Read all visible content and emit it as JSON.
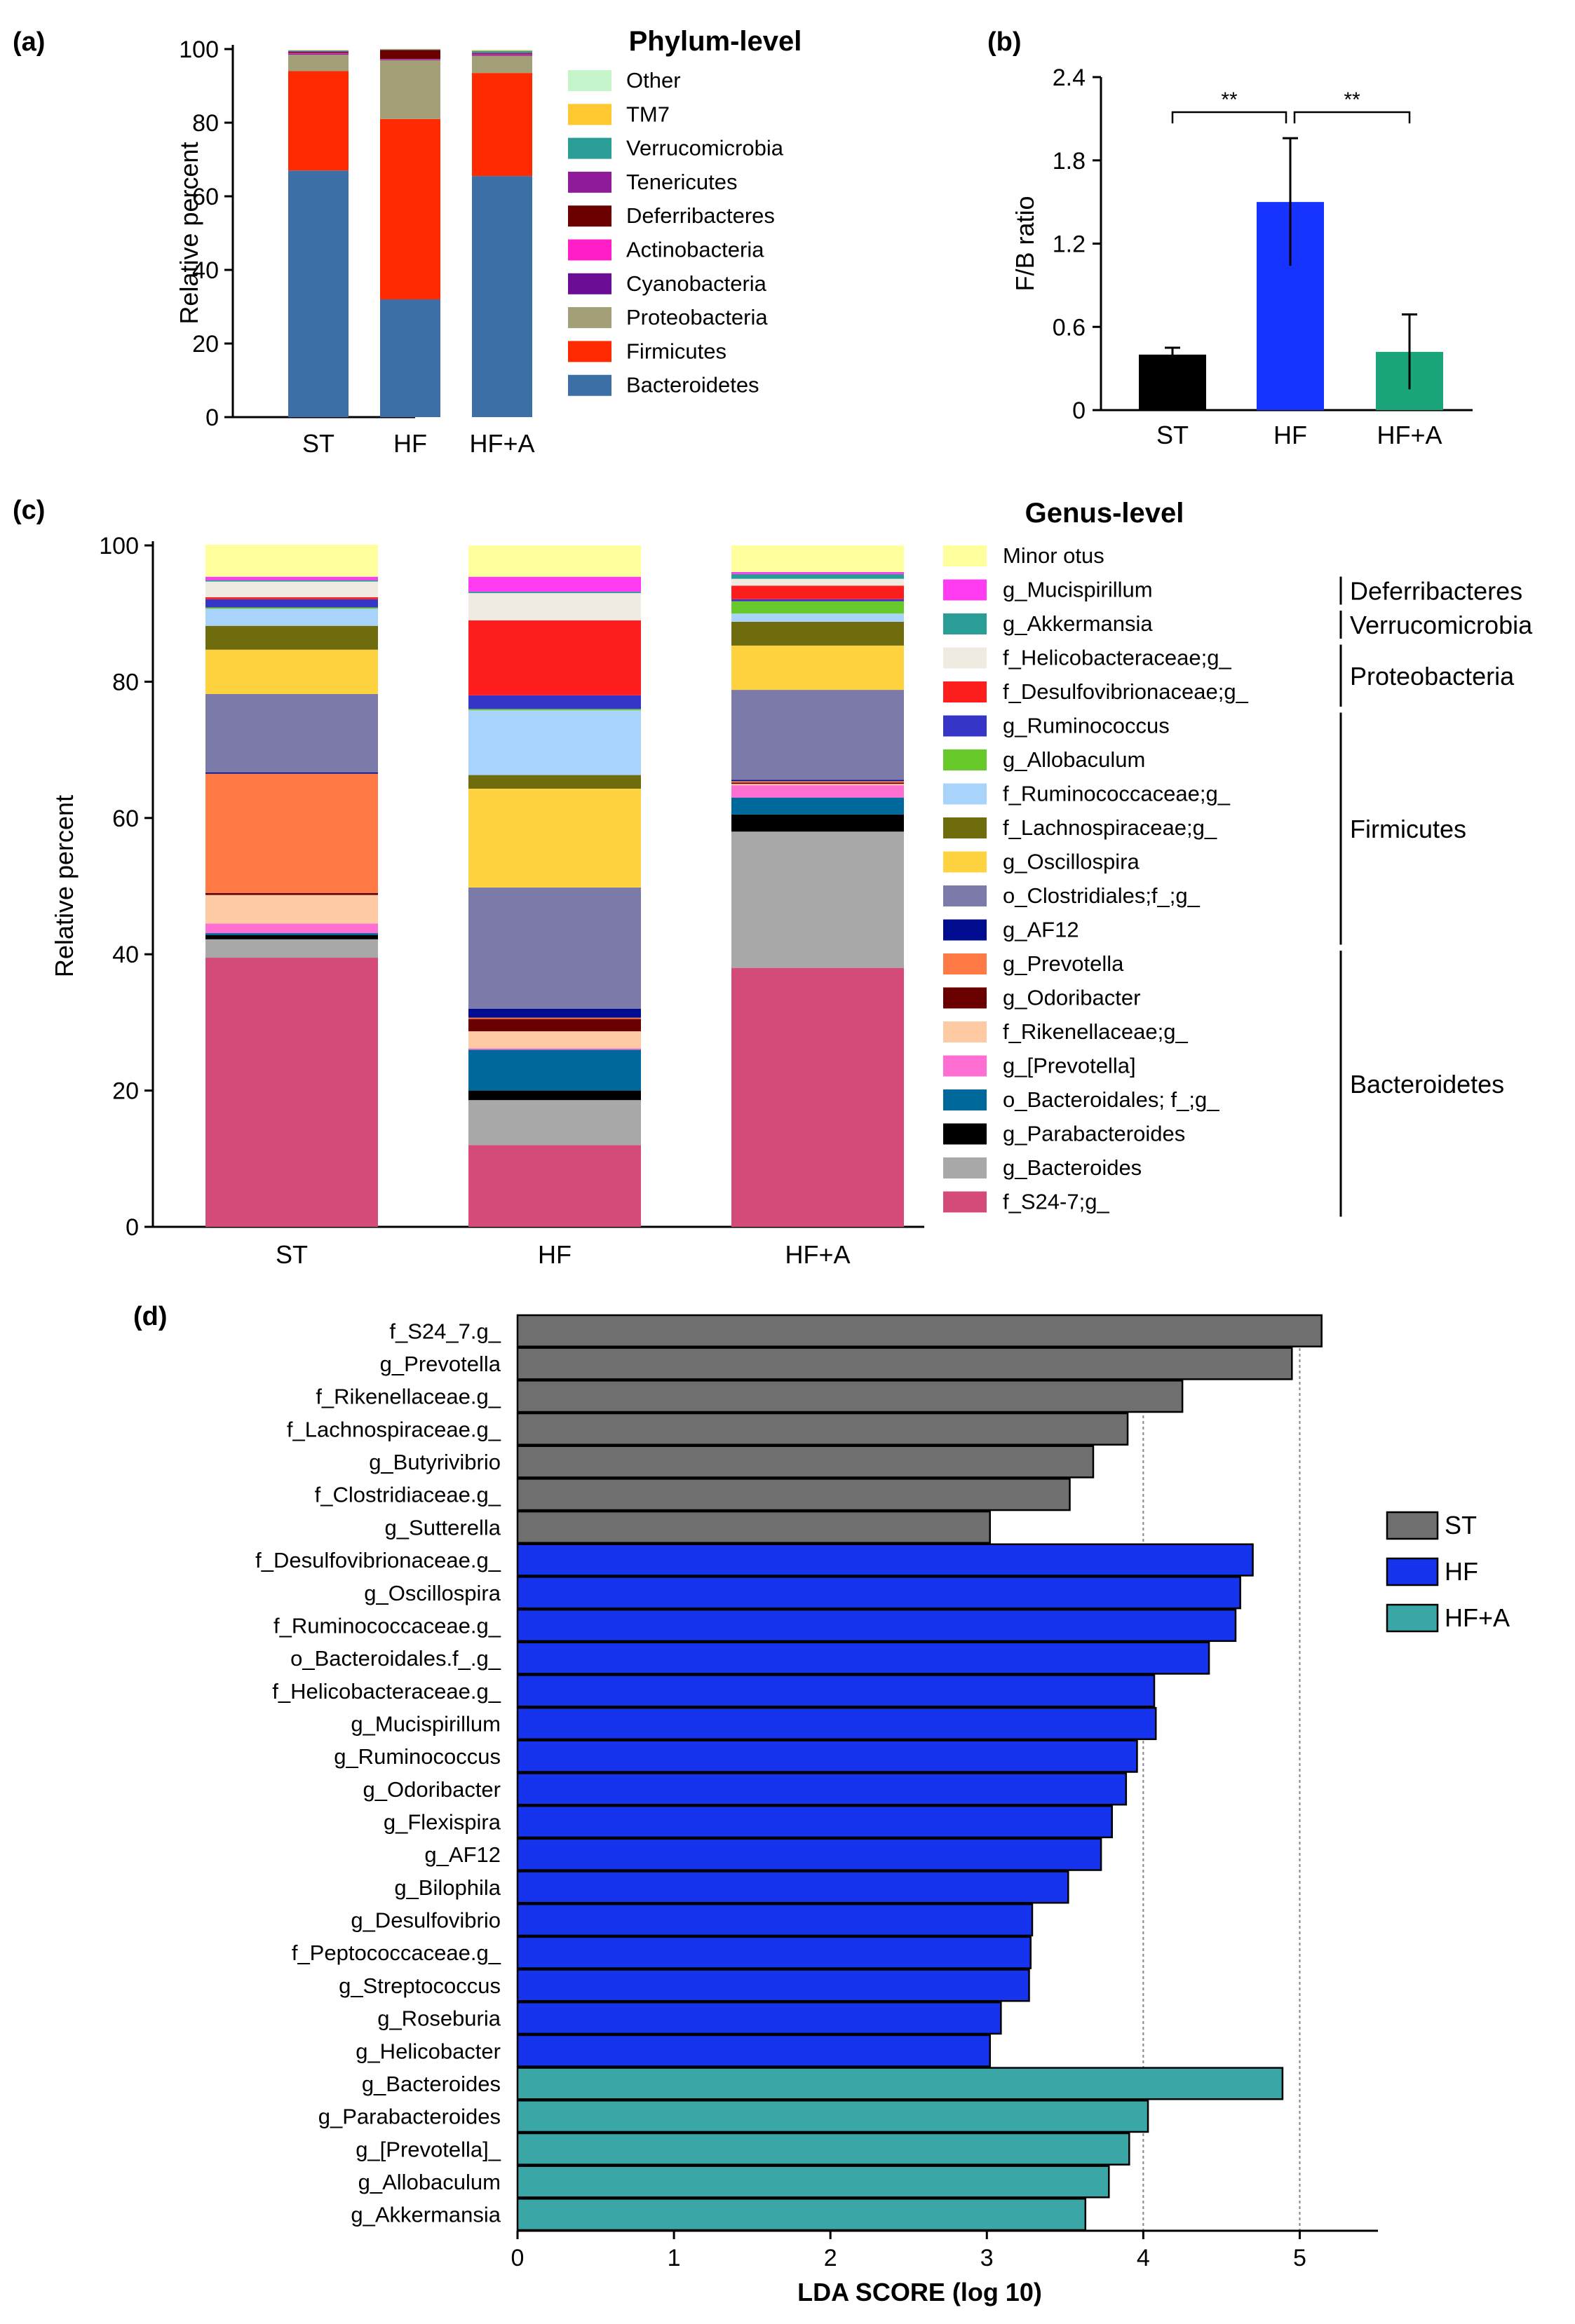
{
  "panels": {
    "a": "(a)",
    "b": "(b)",
    "c": "(c)",
    "d": "(d)"
  },
  "chart_data": [
    {
      "id": "a",
      "type": "bar",
      "stacked": true,
      "title": "Phylum-level",
      "ylabel": "Relative percent",
      "ylim": [
        0,
        100
      ],
      "yticks": [
        0,
        20,
        40,
        60,
        80,
        100
      ],
      "categories": [
        "ST",
        "HF",
        "HF+A"
      ],
      "series": [
        {
          "name": "Bacteroidetes",
          "color": "#3b6fa6",
          "values": [
            67,
            32,
            65.5
          ]
        },
        {
          "name": "Firmicutes",
          "color": "#ff2a00",
          "values": [
            27,
            49,
            28
          ]
        },
        {
          "name": "Proteobacteria",
          "color": "#a39f78",
          "values": [
            4.5,
            16,
            4.7
          ]
        },
        {
          "name": "Cyanobacteria",
          "color": "#6b0d94",
          "values": [
            0.2,
            0.2,
            0.2
          ]
        },
        {
          "name": "Actinobacteria",
          "color": "#ff1ec8",
          "values": [
            0.2,
            0.1,
            0.2
          ]
        },
        {
          "name": "Deferribacteres",
          "color": "#6b0000",
          "values": [
            0.3,
            2.4,
            0.2
          ]
        },
        {
          "name": "Tenericutes",
          "color": "#8f1a9a",
          "values": [
            0.2,
            0.1,
            0.2
          ]
        },
        {
          "name": "Verrucomicrobia",
          "color": "#2a9d96",
          "values": [
            0.2,
            0.1,
            0.5
          ]
        },
        {
          "name": "TM7",
          "color": "#ffc830",
          "values": [
            0.1,
            0.1,
            0.2
          ]
        },
        {
          "name": "Other",
          "color": "#c6f5cc",
          "values": [
            0.1,
            0.1,
            0.1
          ]
        }
      ]
    },
    {
      "id": "b",
      "type": "bar",
      "ylabel": "F/B ratio",
      "ylim": [
        0,
        2.4
      ],
      "yticks": [
        "0",
        "0.6",
        "1.2",
        "1.8",
        "2.4"
      ],
      "categories": [
        "ST",
        "HF",
        "HF+A"
      ],
      "values": [
        0.4,
        1.5,
        0.42
      ],
      "errors": [
        0.05,
        0.46,
        0.27
      ],
      "colors": [
        "#000000",
        "#1633ff",
        "#1aa57a"
      ],
      "significance": [
        {
          "from": 0,
          "to": 1,
          "label": "**"
        },
        {
          "from": 1,
          "to": 2,
          "label": "**"
        }
      ]
    },
    {
      "id": "c",
      "type": "bar",
      "stacked": true,
      "title": "Genus-level",
      "ylabel": "Relative percent",
      "ylim": [
        0,
        100
      ],
      "yticks": [
        0,
        20,
        40,
        60,
        80,
        100
      ],
      "categories": [
        "ST",
        "HF",
        "HF+A"
      ],
      "series": [
        {
          "name": "f_S24-7;g_",
          "color": "#d44a78",
          "values": [
            39.5,
            12,
            38
          ]
        },
        {
          "name": "g_Bacteroides",
          "color": "#a8a8a8",
          "values": [
            2.7,
            6.6,
            20
          ]
        },
        {
          "name": "g_Parabacteroides",
          "color": "#000000",
          "values": [
            0.6,
            1.4,
            2.5
          ]
        },
        {
          "name": "o_Bacteroidales; f_;g_",
          "color": "#00699c",
          "values": [
            0.3,
            6,
            2.5
          ]
        },
        {
          "name": "g_[Prevotella]",
          "color": "#ff6ed2",
          "values": [
            1.4,
            0.2,
            1.8
          ]
        },
        {
          "name": "f_Rikenellaceae;g_",
          "color": "#ffcba4",
          "values": [
            4.2,
            2.5,
            0.2
          ]
        },
        {
          "name": "g_Odoribacter",
          "color": "#6b0000",
          "values": [
            0.3,
            1.8,
            0.2
          ]
        },
        {
          "name": "g_Prevotella",
          "color": "#ff7a45",
          "values": [
            17.5,
            0.2,
            0.2
          ]
        },
        {
          "name": "g_AF12",
          "color": "#000d91",
          "values": [
            0.2,
            1.3,
            0.2
          ]
        },
        {
          "name": "o_Clostridiales;f_;g_",
          "color": "#7b7aa8",
          "values": [
            11.5,
            17.8,
            13.2
          ]
        },
        {
          "name": "g_Oscillospira",
          "color": "#ffd23f",
          "values": [
            6.5,
            14.5,
            6.5
          ]
        },
        {
          "name": "f_Lachnospiraceae;g_",
          "color": "#6e6c0d",
          "values": [
            3.5,
            2,
            3.5
          ]
        },
        {
          "name": "f_Ruminococcaceae;g_",
          "color": "#a8d4fc",
          "values": [
            2.5,
            9.5,
            1.2
          ]
        },
        {
          "name": "g_Allobaculum",
          "color": "#67c92a",
          "values": [
            0.2,
            0.2,
            1.8
          ]
        },
        {
          "name": "g_Ruminococcus",
          "color": "#3535c8",
          "values": [
            1.2,
            2,
            0.3
          ]
        },
        {
          "name": "f_Desulfovibrionaceae;g_",
          "color": "#ff1e1e",
          "values": [
            0.3,
            11,
            2
          ]
        },
        {
          "name": "f_Helicobacteraceae;g_",
          "color": "#efebe0",
          "values": [
            2.3,
            4,
            1
          ]
        },
        {
          "name": "g_Akkermansia",
          "color": "#2a9d96",
          "values": [
            0.2,
            0.2,
            0.7
          ]
        },
        {
          "name": "g_Mucispirillum",
          "color": "#ff3cf2",
          "values": [
            0.5,
            2.2,
            0.3
          ]
        },
        {
          "name": "Minor otus",
          "color": "#ffff9e",
          "values": [
            4.7,
            4.6,
            3.9
          ]
        }
      ],
      "legend_order": [
        "Minor otus",
        "g_Mucispirillum",
        "g_Akkermansia",
        "f_Helicobacteraceae;g_",
        "f_Desulfovibrionaceae;g_",
        "g_Ruminococcus",
        "g_Allobaculum",
        "f_Ruminococcaceae;g_",
        "f_Lachnospiraceae;g_",
        "g_Oscillospira",
        "o_Clostridiales;f_;g_",
        "g_AF12",
        "g_Prevotella",
        "g_Odoribacter",
        "f_Rikenellaceae;g_",
        "g_[Prevotella]",
        "o_Bacteroidales; f_;g_",
        "g_Parabacteroides",
        "g_Bacteroides",
        "f_S24-7;g_"
      ],
      "groups": [
        {
          "label": "Deferribacteres",
          "from": 1,
          "to": 1
        },
        {
          "label": "Verrucomicrobia",
          "from": 2,
          "to": 2
        },
        {
          "label": "Proteobacteria",
          "from": 3,
          "to": 4
        },
        {
          "label": "Firmicutes",
          "from": 5,
          "to": 11
        },
        {
          "label": "Bacteroidetes",
          "from": 12,
          "to": 19
        }
      ]
    },
    {
      "id": "d",
      "type": "bar",
      "orientation": "horizontal",
      "xlabel": "LDA SCORE (log 10)",
      "xlim": [
        0,
        5.5
      ],
      "xticks": [
        0,
        1,
        2,
        3,
        4,
        5
      ],
      "legend": [
        {
          "label": "ST",
          "color": "#6f6f6f"
        },
        {
          "label": "HF",
          "color": "#1633ee"
        },
        {
          "label": "HF+A",
          "color": "#3aa6a6"
        }
      ],
      "categories": [
        "f_S24_7.g_",
        "g_Prevotella",
        "f_Rikenellaceae.g_",
        "f_Lachnospiraceae.g_",
        "g_Butyrivibrio",
        "f_Clostridiaceae.g_",
        "g_Sutterella",
        "f_Desulfovibrionaceae.g_",
        "g_Oscillospira",
        "f_Ruminococcaceae.g_",
        "o_Bacteroidales.f_.g_",
        "f_Helicobacteraceae.g_",
        "g_Mucispirillum",
        "g_Ruminococcus",
        "g_Odoribacter",
        "g_Flexispira",
        "g_AF12",
        "g_Bilophila",
        "g_Desulfovibrio",
        "f_Peptococcaceae.g_",
        "g_Streptococcus",
        "g_Roseburia",
        "g_Helicobacter",
        "g_Bacteroides",
        "g_Parabacteroides",
        "g_[Prevotella]_",
        "g_Allobaculum",
        "g_Akkermansia"
      ],
      "values": [
        5.14,
        4.95,
        4.25,
        3.9,
        3.68,
        3.53,
        3.02,
        4.7,
        4.62,
        4.59,
        4.42,
        4.07,
        4.08,
        3.96,
        3.89,
        3.8,
        3.73,
        3.52,
        3.29,
        3.28,
        3.27,
        3.09,
        3.02,
        4.89,
        4.03,
        3.91,
        3.78,
        3.63
      ],
      "groups": [
        "ST",
        "ST",
        "ST",
        "ST",
        "ST",
        "ST",
        "ST",
        "HF",
        "HF",
        "HF",
        "HF",
        "HF",
        "HF",
        "HF",
        "HF",
        "HF",
        "HF",
        "HF",
        "HF",
        "HF",
        "HF",
        "HF",
        "HF",
        "HF+A",
        "HF+A",
        "HF+A",
        "HF+A",
        "HF+A"
      ]
    }
  ]
}
